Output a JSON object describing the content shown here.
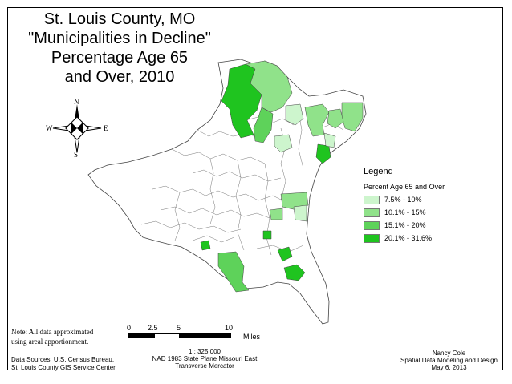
{
  "title": {
    "line1": "St. Louis County, MO",
    "line2": "\"Municipalities in Decline\"",
    "line3": "Percentage Age 65",
    "line4": "and Over, 2010"
  },
  "compass": {
    "north": "N",
    "south": "S",
    "east": "E",
    "west": "W"
  },
  "legend": {
    "title": "Legend",
    "subtitle": "Percent Age 65 and Over",
    "classes": [
      {
        "label": "7.5% - 10%",
        "color": "#cdf5cd"
      },
      {
        "label": "10.1% - 15%",
        "color": "#90e28a"
      },
      {
        "label": "15.1% - 20%",
        "color": "#5ed25a"
      },
      {
        "label": "20.1% - 31.6%",
        "color": "#1fc41f"
      }
    ]
  },
  "note": {
    "line1": "Note: All data approximated",
    "line2": "using areal apportionment."
  },
  "sources": {
    "line1": "Data Sources: U.S. Census Bureau,",
    "line2": "St. Louis County GIS Service Center"
  },
  "scale": {
    "ticks": [
      "0",
      "2.5",
      "5",
      "10"
    ],
    "unit": "Miles",
    "ratio": "1 : 325,000",
    "projection_line1": "NAD 1983 State Plane Missouri East",
    "projection_line2": "Transverse Mercator"
  },
  "credit": {
    "line1": "Nancy Cole",
    "line2": "Spatial Data Modeling and Design",
    "line3": "May 6, 2013"
  }
}
